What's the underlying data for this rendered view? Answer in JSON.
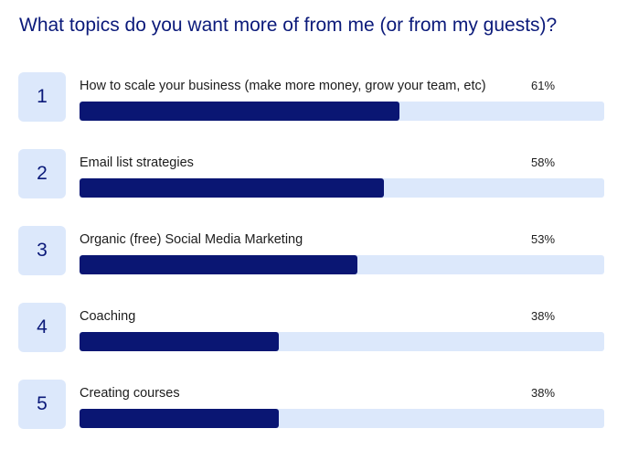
{
  "page": {
    "title": "What topics do you want more of from me (or from my guests)?"
  },
  "colors": {
    "title": "#0b1a7a",
    "bar_fill": "#0a1673",
    "track": "#dce8fb"
  },
  "chart_data": {
    "type": "bar",
    "orientation": "horizontal",
    "title": "What topics do you want more of from me (or from my guests)?",
    "value_unit": "%",
    "xlim": [
      0,
      100
    ],
    "categories": [
      "How to scale your business (make more money, grow your team, etc)",
      "Email list strategies",
      "Organic (free) Social Media Marketing",
      "Coaching",
      "Creating courses"
    ],
    "ranks": [
      "1",
      "2",
      "3",
      "4",
      "5"
    ],
    "values": [
      61,
      58,
      53,
      38,
      38
    ],
    "value_labels": [
      "61%",
      "58%",
      "53%",
      "38%",
      "38%"
    ]
  }
}
